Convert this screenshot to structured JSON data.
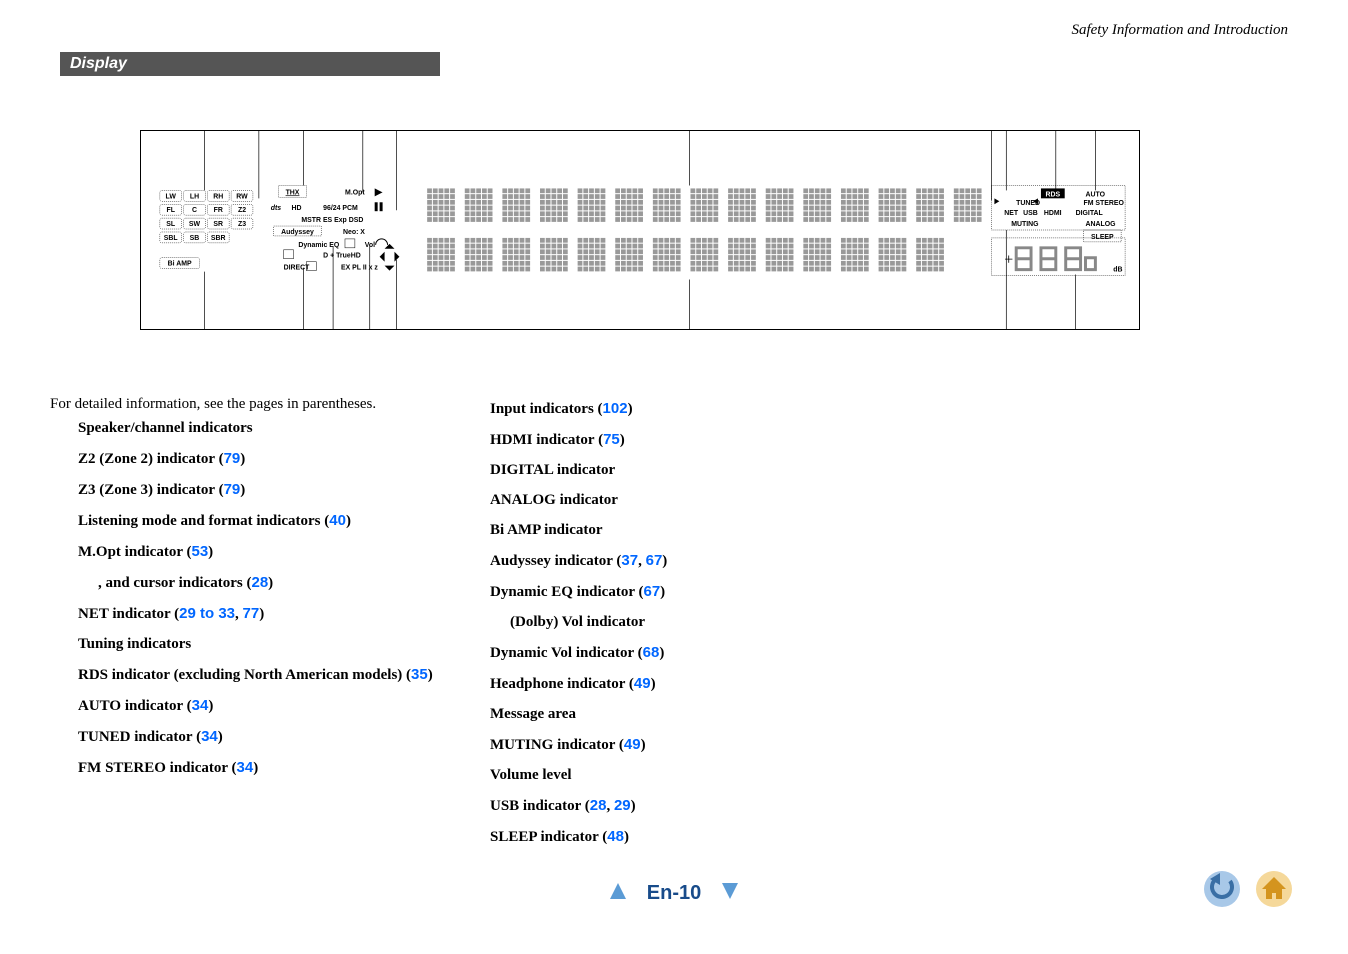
{
  "header": {
    "breadcrumb": "Safety Information and Introduction",
    "section_title": "Display"
  },
  "intro": "For detailed information, see the pages in parentheses.",
  "col1": [
    {
      "label": "Speaker/channel indicators",
      "refs": []
    },
    {
      "label": "Z2 (Zone 2) indicator",
      "refs": [
        "79"
      ]
    },
    {
      "label": "Z3 (Zone 3) indicator",
      "refs": [
        "79"
      ]
    },
    {
      "label": "Listening mode and format indicators",
      "refs": [
        "40"
      ]
    },
    {
      "label": "M.Opt indicator",
      "refs": [
        "53"
      ]
    },
    {
      "label": ",       and cursor indicators",
      "refs": [
        "28"
      ],
      "indent": true
    },
    {
      "label": "NET indicator",
      "refs": [
        "29 to 33",
        "77"
      ]
    },
    {
      "label": "Tuning indicators",
      "refs": []
    },
    {
      "label": "RDS indicator (excluding North American models)",
      "refs": [
        "35"
      ]
    },
    {
      "label": "AUTO indicator",
      "refs": [
        "34"
      ]
    },
    {
      "label": "TUNED indicator",
      "refs": [
        "34"
      ]
    },
    {
      "label": "FM STEREO indicator",
      "refs": [
        "34"
      ]
    }
  ],
  "col2": [
    {
      "label": "Input indicators",
      "refs": [
        "102"
      ]
    },
    {
      "label": "HDMI indicator",
      "refs": [
        "75"
      ]
    },
    {
      "label": "DIGITAL indicator",
      "refs": []
    },
    {
      "label": "ANALOG indicator",
      "refs": []
    },
    {
      "label": "Bi AMP indicator",
      "refs": []
    },
    {
      "label": "Audyssey indicator",
      "refs": [
        "37",
        "67"
      ]
    },
    {
      "label": "Dynamic EQ indicator",
      "refs": [
        "67"
      ]
    },
    {
      "label": "(Dolby) Vol indicator",
      "refs": [],
      "indent": true
    },
    {
      "label": "Dynamic Vol indicator",
      "refs": [
        "68"
      ]
    },
    {
      "label": "Headphone indicator",
      "refs": [
        "49"
      ]
    },
    {
      "label": "Message area",
      "refs": []
    },
    {
      "label": "MUTING indicator",
      "refs": [
        "49"
      ]
    },
    {
      "label": "Volume level",
      "refs": []
    },
    {
      "label": "USB indicator",
      "refs": [
        "28",
        "29"
      ]
    },
    {
      "label": "SLEEP indicator",
      "refs": [
        "48"
      ]
    }
  ],
  "page": "En-10",
  "display_labels": {
    "speakers_top": [
      "LW",
      "LH",
      "RH",
      "RW"
    ],
    "speakers_mid": [
      "FL",
      "C",
      "FR",
      "Z2"
    ],
    "speakers_low": [
      "SL",
      "SW",
      "SR",
      "Z3"
    ],
    "speakers_bot": [
      "SBL",
      "SB",
      "SBR"
    ],
    "bi_amp": "Bi AMP",
    "thx": "THX",
    "mopt": "M.Opt",
    "dts": "dts",
    "hd": "HD",
    "pcm": "96/24 PCM",
    "mstr": "MSTR ES Exp DSD",
    "aud": "Audyssey",
    "neo": "Neo:   X",
    "dyn": "Dynamic EQ",
    "vol": "Vol",
    "truehd": "D + TrueHD",
    "direct": "DIRECT",
    "expl": "EX PL II x z",
    "rds": "RDS",
    "auto": "AUTO",
    "tuned": "TUNED",
    "fm": "FM STEREO",
    "net": "NET",
    "usb": "USB",
    "hdmi": "HDMI",
    "digital": "DIGITAL",
    "muting": "MUTING",
    "analog": "ANALOG",
    "sleep": "SLEEP",
    "db": "dB"
  },
  "colors": {
    "link": "#0066ff",
    "section_bg": "#555555",
    "page_num": "#184b8a",
    "icon_blue": "#5b9bd5",
    "icon_orange": "#e8a23d"
  }
}
